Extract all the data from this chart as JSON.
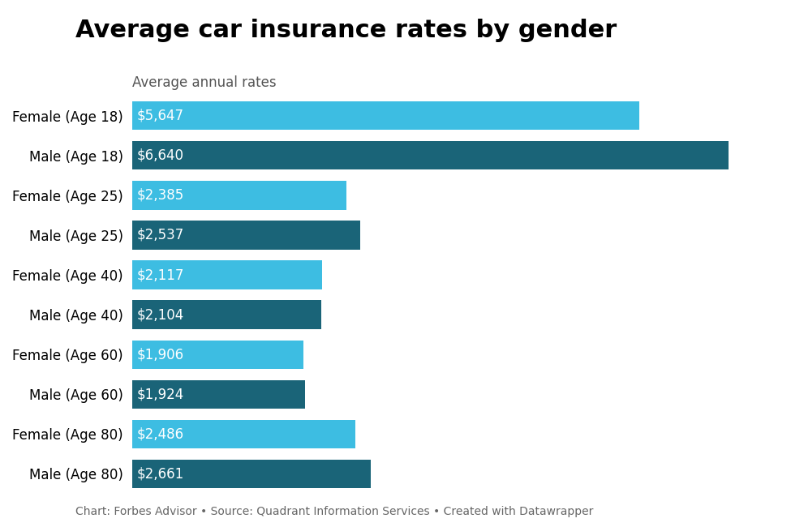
{
  "title": "Average car insurance rates by gender",
  "subtitle": "Average annual rates",
  "categories": [
    "Female (Age 18)",
    "Male (Age 18)",
    "Female (Age 25)",
    "Male (Age 25)",
    "Female (Age 40)",
    "Male (Age 40)",
    "Female (Age 60)",
    "Male (Age 60)",
    "Female (Age 80)",
    "Male (Age 80)"
  ],
  "values": [
    5647,
    6640,
    2385,
    2537,
    2117,
    2104,
    1906,
    1924,
    2486,
    2661
  ],
  "labels": [
    "$5,647",
    "$6,640",
    "$2,385",
    "$2,537",
    "$2,117",
    "$2,104",
    "$1,906",
    "$1,924",
    "$2,486",
    "$2,661"
  ],
  "bar_colors": [
    "#3dbde2",
    "#1a6478",
    "#3dbde2",
    "#1a6478",
    "#3dbde2",
    "#1a6478",
    "#3dbde2",
    "#1a6478",
    "#3dbde2",
    "#1a6478"
  ],
  "footer": "Chart: Forbes Advisor • Source: Quadrant Information Services • Created with Datawrapper",
  "title_fontsize": 22,
  "subtitle_fontsize": 12,
  "label_fontsize": 12,
  "ylabel_fontsize": 12,
  "footer_fontsize": 10,
  "xlim": [
    0,
    7200
  ],
  "background_color": "#ffffff",
  "text_color": "#ffffff",
  "title_color": "#000000",
  "subtitle_color": "#555555",
  "footer_color": "#666666"
}
